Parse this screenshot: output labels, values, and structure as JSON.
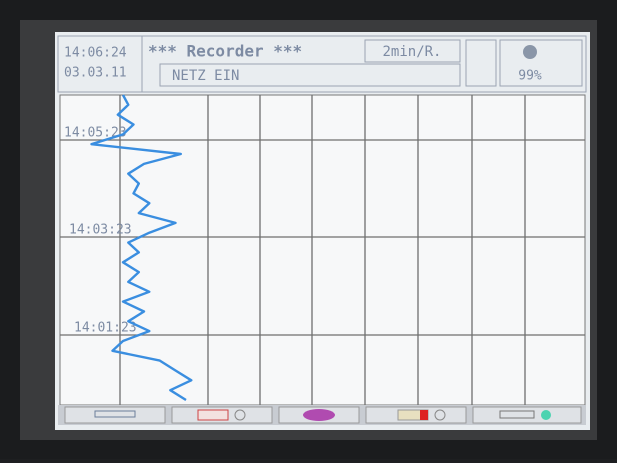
{
  "header": {
    "time": "14:06:24",
    "date": "03.03.11",
    "title": "*** Recorder ***",
    "rate": "2min/R.",
    "status": "NETZ EIN",
    "level": "99%"
  },
  "time_labels": [
    "14:05:23",
    "14:03:23",
    "14:01:23"
  ],
  "trace": {
    "color": "#3a8ee0",
    "values": [
      12,
      13,
      11,
      14,
      12,
      6,
      23,
      16,
      13,
      15,
      14,
      17,
      15,
      22,
      17,
      13,
      15,
      12,
      15,
      13,
      17,
      12,
      16,
      13,
      17,
      12,
      10,
      19,
      22,
      25,
      21,
      24
    ]
  }
}
